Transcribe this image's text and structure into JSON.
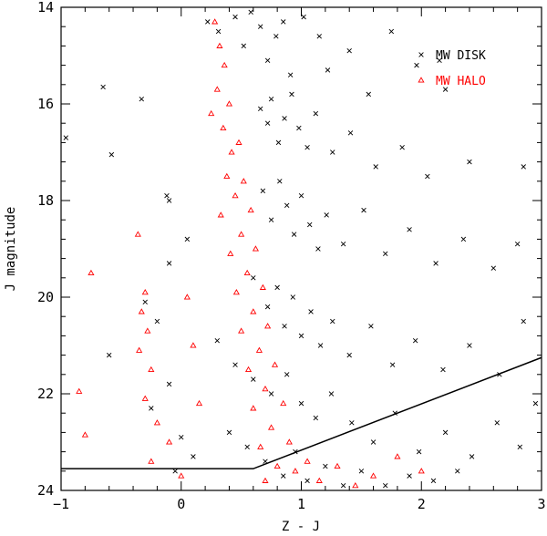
{
  "chart_data": {
    "type": "scatter",
    "title": "",
    "xlabel": "Z - J",
    "ylabel": "J magnitude",
    "xlim": [
      -1,
      3
    ],
    "ylim": [
      24,
      14
    ],
    "y_inverted": true,
    "x_ticks": [
      -1,
      0,
      1,
      2,
      3
    ],
    "y_ticks": [
      14,
      16,
      18,
      20,
      22,
      24
    ],
    "grid": false,
    "legend_position": "top-right",
    "series": [
      {
        "name": "MW DISK",
        "marker": "x",
        "color": "#000000",
        "points": [
          [
            0.22,
            14.3
          ],
          [
            0.31,
            14.5
          ],
          [
            0.45,
            14.2
          ],
          [
            0.52,
            14.8
          ],
          [
            0.58,
            14.1
          ],
          [
            0.66,
            14.4
          ],
          [
            0.72,
            15.1
          ],
          [
            0.79,
            14.6
          ],
          [
            0.85,
            14.3
          ],
          [
            0.91,
            15.4
          ],
          [
            1.02,
            14.2
          ],
          [
            1.15,
            14.6
          ],
          [
            1.22,
            15.3
          ],
          [
            1.4,
            14.9
          ],
          [
            1.56,
            15.8
          ],
          [
            1.75,
            14.5
          ],
          [
            1.96,
            15.2
          ],
          [
            2.15,
            15.1
          ],
          [
            2.2,
            15.7
          ],
          [
            0.66,
            16.1
          ],
          [
            0.72,
            16.4
          ],
          [
            0.75,
            15.9
          ],
          [
            0.81,
            16.8
          ],
          [
            0.86,
            16.3
          ],
          [
            0.92,
            15.8
          ],
          [
            0.98,
            16.5
          ],
          [
            1.05,
            16.9
          ],
          [
            1.12,
            16.2
          ],
          [
            1.26,
            17.0
          ],
          [
            1.41,
            16.6
          ],
          [
            1.62,
            17.3
          ],
          [
            1.84,
            16.9
          ],
          [
            2.05,
            17.5
          ],
          [
            2.4,
            17.2
          ],
          [
            2.85,
            17.3
          ],
          [
            0.68,
            17.8
          ],
          [
            0.75,
            18.4
          ],
          [
            0.82,
            17.6
          ],
          [
            0.88,
            18.1
          ],
          [
            0.94,
            18.7
          ],
          [
            1.0,
            17.9
          ],
          [
            1.07,
            18.5
          ],
          [
            1.14,
            19.0
          ],
          [
            1.21,
            18.3
          ],
          [
            1.35,
            18.9
          ],
          [
            1.52,
            18.2
          ],
          [
            1.7,
            19.1
          ],
          [
            1.9,
            18.6
          ],
          [
            2.12,
            19.3
          ],
          [
            2.35,
            18.8
          ],
          [
            2.6,
            19.4
          ],
          [
            2.8,
            18.9
          ],
          [
            0.6,
            19.6
          ],
          [
            0.72,
            20.2
          ],
          [
            0.8,
            19.8
          ],
          [
            0.86,
            20.6
          ],
          [
            0.93,
            20.0
          ],
          [
            1.0,
            20.8
          ],
          [
            1.08,
            20.3
          ],
          [
            1.16,
            21.0
          ],
          [
            1.26,
            20.5
          ],
          [
            1.4,
            21.2
          ],
          [
            1.58,
            20.6
          ],
          [
            1.76,
            21.4
          ],
          [
            1.95,
            20.9
          ],
          [
            2.18,
            21.5
          ],
          [
            2.4,
            21.0
          ],
          [
            2.65,
            21.6
          ],
          [
            2.85,
            20.5
          ],
          [
            0.3,
            20.9
          ],
          [
            0.45,
            21.4
          ],
          [
            0.6,
            21.7
          ],
          [
            0.75,
            22.0
          ],
          [
            0.88,
            21.6
          ],
          [
            1.0,
            22.2
          ],
          [
            1.12,
            22.5
          ],
          [
            1.25,
            22.0
          ],
          [
            1.42,
            22.6
          ],
          [
            1.6,
            23.0
          ],
          [
            1.78,
            22.4
          ],
          [
            1.98,
            23.2
          ],
          [
            2.2,
            22.8
          ],
          [
            2.42,
            23.3
          ],
          [
            2.63,
            22.6
          ],
          [
            2.82,
            23.1
          ],
          [
            2.95,
            22.2
          ],
          [
            0.4,
            22.8
          ],
          [
            0.55,
            23.1
          ],
          [
            0.7,
            23.4
          ],
          [
            0.85,
            23.7
          ],
          [
            0.95,
            23.2
          ],
          [
            1.05,
            23.8
          ],
          [
            1.2,
            23.5
          ],
          [
            1.35,
            23.9
          ],
          [
            1.5,
            23.6
          ],
          [
            1.7,
            23.9
          ],
          [
            1.9,
            23.7
          ],
          [
            2.1,
            23.8
          ],
          [
            2.3,
            23.6
          ],
          [
            -0.65,
            15.65
          ],
          [
            -0.33,
            15.9
          ],
          [
            -0.58,
            17.05
          ],
          [
            -0.96,
            16.7
          ],
          [
            -0.12,
            17.9
          ],
          [
            -0.1,
            18.0
          ],
          [
            0.05,
            18.8
          ],
          [
            -0.1,
            19.3
          ],
          [
            -0.3,
            20.1
          ],
          [
            -0.2,
            20.5
          ],
          [
            -0.6,
            21.2
          ],
          [
            -0.1,
            21.8
          ],
          [
            -0.25,
            22.3
          ],
          [
            0.0,
            22.9
          ],
          [
            0.1,
            23.3
          ],
          [
            -0.05,
            23.6
          ]
        ]
      },
      {
        "name": "MW HALO",
        "marker": "triangle",
        "color": "#ff0000",
        "points": [
          [
            0.28,
            14.3
          ],
          [
            0.32,
            14.8
          ],
          [
            0.36,
            15.2
          ],
          [
            0.3,
            15.7
          ],
          [
            0.4,
            16.0
          ],
          [
            0.35,
            16.5
          ],
          [
            0.42,
            17.0
          ],
          [
            0.38,
            17.5
          ],
          [
            0.45,
            17.9
          ],
          [
            0.33,
            18.3
          ],
          [
            0.5,
            18.7
          ],
          [
            0.41,
            19.1
          ],
          [
            0.55,
            19.5
          ],
          [
            0.46,
            19.9
          ],
          [
            0.6,
            20.3
          ],
          [
            0.5,
            20.7
          ],
          [
            0.65,
            21.1
          ],
          [
            0.56,
            21.5
          ],
          [
            0.7,
            21.9
          ],
          [
            0.6,
            22.3
          ],
          [
            0.75,
            22.7
          ],
          [
            0.66,
            23.1
          ],
          [
            0.8,
            23.5
          ],
          [
            0.7,
            23.8
          ],
          [
            0.25,
            16.2
          ],
          [
            0.48,
            16.8
          ],
          [
            0.52,
            17.6
          ],
          [
            0.58,
            18.2
          ],
          [
            0.62,
            19.0
          ],
          [
            0.68,
            19.8
          ],
          [
            0.72,
            20.6
          ],
          [
            0.78,
            21.4
          ],
          [
            0.85,
            22.2
          ],
          [
            0.9,
            23.0
          ],
          [
            0.95,
            23.6
          ],
          [
            1.05,
            23.4
          ],
          [
            1.15,
            23.8
          ],
          [
            1.3,
            23.5
          ],
          [
            1.45,
            23.9
          ],
          [
            1.6,
            23.7
          ],
          [
            1.8,
            23.3
          ],
          [
            2.0,
            23.6
          ],
          [
            -0.36,
            18.7
          ],
          [
            -0.75,
            19.5
          ],
          [
            -0.3,
            19.9
          ],
          [
            -0.33,
            20.3
          ],
          [
            -0.28,
            20.7
          ],
          [
            -0.35,
            21.1
          ],
          [
            -0.25,
            21.5
          ],
          [
            -0.85,
            21.95
          ],
          [
            -0.3,
            22.1
          ],
          [
            -0.2,
            22.6
          ],
          [
            -0.8,
            22.85
          ],
          [
            -0.1,
            23.0
          ],
          [
            -0.25,
            23.4
          ],
          [
            0.0,
            23.7
          ],
          [
            0.15,
            22.2
          ],
          [
            0.1,
            21.0
          ],
          [
            0.05,
            20.0
          ]
        ]
      }
    ],
    "lines": [
      {
        "color": "#000000",
        "points": [
          [
            -1,
            23.55
          ],
          [
            0.6,
            23.55
          ],
          [
            3,
            21.25
          ]
        ]
      }
    ]
  }
}
